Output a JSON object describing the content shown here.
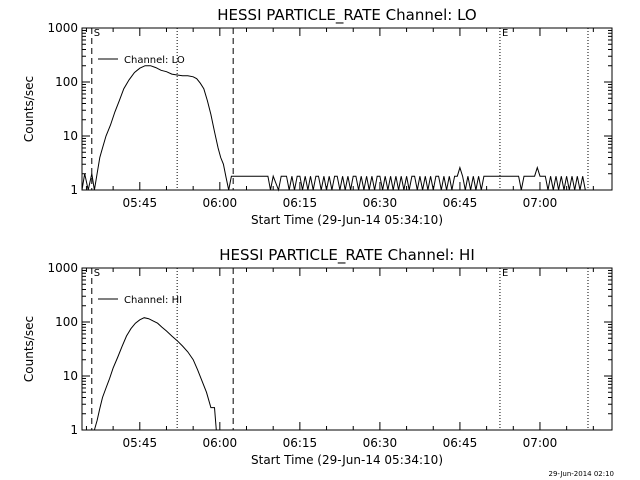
{
  "footer_timestamp": "29-Jun-2014 02:10",
  "chart_data": [
    {
      "type": "line",
      "title": "HESSI PARTICLE_RATE Channel: LO",
      "xlabel": "Start Time (29-Jun-14 05:34:10)",
      "ylabel": "Counts/sec",
      "y_scale": "log",
      "ylim": [
        1,
        1000
      ],
      "xlim": [
        "05:34:10",
        "07:13:30"
      ],
      "x_tick_labels": [
        "05:45",
        "06:00",
        "06:15",
        "06:30",
        "06:45",
        "07:00"
      ],
      "y_tick_labels": [
        "1",
        "10",
        "100",
        "1000"
      ],
      "legend": {
        "label": "Channel: LO",
        "position": "top-left"
      },
      "markers": [
        {
          "time": "05:36:00",
          "style": "dashed",
          "label": "S"
        },
        {
          "time": "05:52:00",
          "style": "dotted",
          "label": ""
        },
        {
          "time": "06:02:30",
          "style": "dashed",
          "label": ""
        },
        {
          "time": "06:52:30",
          "style": "dotted",
          "label": "E"
        },
        {
          "time": "07:09:00",
          "style": "dotted",
          "label": ""
        }
      ],
      "series": [
        {
          "name": "Channel: LO",
          "points": [
            [
              "05:34:10",
              1
            ],
            [
              "05:34:40",
              2
            ],
            [
              "05:35:20",
              1
            ],
            [
              "05:36:00",
              2
            ],
            [
              "05:36:30",
              1
            ],
            [
              "05:37:00",
              2
            ],
            [
              "05:37:30",
              4
            ],
            [
              "05:38:00",
              6
            ],
            [
              "05:38:40",
              10
            ],
            [
              "05:39:30",
              16
            ],
            [
              "05:40:20",
              28
            ],
            [
              "05:41:10",
              45
            ],
            [
              "05:42:00",
              75
            ],
            [
              "05:43:00",
              110
            ],
            [
              "05:44:00",
              150
            ],
            [
              "05:45:00",
              180
            ],
            [
              "05:46:00",
              200
            ],
            [
              "05:47:00",
              200
            ],
            [
              "05:48:00",
              185
            ],
            [
              "05:49:00",
              165
            ],
            [
              "05:50:00",
              155
            ],
            [
              "05:51:00",
              140
            ],
            [
              "05:52:00",
              135
            ],
            [
              "05:53:00",
              130
            ],
            [
              "05:54:00",
              130
            ],
            [
              "05:55:00",
              125
            ],
            [
              "05:55:40",
              115
            ],
            [
              "05:56:20",
              95
            ],
            [
              "05:57:00",
              75
            ],
            [
              "05:57:40",
              45
            ],
            [
              "05:58:20",
              25
            ],
            [
              "05:59:00",
              12
            ],
            [
              "05:59:40",
              6
            ],
            [
              "06:00:10",
              4
            ],
            [
              "06:00:40",
              3
            ],
            [
              "06:01:10",
              1.7
            ],
            [
              "06:01:40",
              1
            ],
            [
              "06:02:10",
              1.8
            ],
            [
              "06:03:00",
              1.8
            ],
            [
              "06:04:00",
              1.8
            ],
            [
              "06:05:00",
              1.8
            ],
            [
              "06:06:00",
              1.8
            ],
            [
              "06:07:00",
              1.8
            ],
            [
              "06:08:00",
              1.8
            ],
            [
              "06:09:00",
              1.8
            ],
            [
              "06:09:30",
              1
            ],
            [
              "06:10:00",
              1.8
            ],
            [
              "06:11:00",
              1
            ],
            [
              "06:11:30",
              1.8
            ],
            [
              "06:12:30",
              1.8
            ],
            [
              "06:13:00",
              1
            ],
            [
              "06:13:30",
              1.8
            ],
            [
              "06:14:00",
              1
            ],
            [
              "06:14:30",
              1.8
            ],
            [
              "06:15:00",
              1.8
            ],
            [
              "06:15:30",
              1
            ],
            [
              "06:16:00",
              1.8
            ],
            [
              "06:16:30",
              1
            ],
            [
              "06:17:00",
              1.8
            ],
            [
              "06:17:30",
              1
            ],
            [
              "06:18:00",
              1.8
            ],
            [
              "06:18:30",
              1.8
            ],
            [
              "06:19:00",
              1
            ],
            [
              "06:19:30",
              1.8
            ],
            [
              "06:20:00",
              1
            ],
            [
              "06:20:30",
              1.8
            ],
            [
              "06:21:00",
              1
            ],
            [
              "06:21:30",
              1.8
            ],
            [
              "06:22:00",
              1.8
            ],
            [
              "06:22:30",
              1
            ],
            [
              "06:23:00",
              1.8
            ],
            [
              "06:23:30",
              1
            ],
            [
              "06:24:00",
              1.8
            ],
            [
              "06:24:30",
              1
            ],
            [
              "06:25:00",
              1.8
            ],
            [
              "06:25:30",
              1.8
            ],
            [
              "06:26:00",
              1
            ],
            [
              "06:26:30",
              1.8
            ],
            [
              "06:27:00",
              1
            ],
            [
              "06:27:30",
              1.8
            ],
            [
              "06:28:00",
              1
            ],
            [
              "06:28:30",
              1.8
            ],
            [
              "06:29:00",
              1
            ],
            [
              "06:29:30",
              1.8
            ],
            [
              "06:30:00",
              1.8
            ],
            [
              "06:30:30",
              1
            ],
            [
              "06:31:00",
              1.8
            ],
            [
              "06:31:30",
              1
            ],
            [
              "06:32:00",
              1.8
            ],
            [
              "06:32:30",
              1
            ],
            [
              "06:33:00",
              1.8
            ],
            [
              "06:33:30",
              1
            ],
            [
              "06:34:00",
              1.8
            ],
            [
              "06:34:30",
              1
            ],
            [
              "06:35:00",
              1.8
            ],
            [
              "06:35:30",
              1
            ],
            [
              "06:36:00",
              1.8
            ],
            [
              "06:36:30",
              1.8
            ],
            [
              "06:37:00",
              1
            ],
            [
              "06:37:30",
              1.8
            ],
            [
              "06:38:00",
              1
            ],
            [
              "06:38:30",
              1.8
            ],
            [
              "06:39:00",
              1
            ],
            [
              "06:39:30",
              1.8
            ],
            [
              "06:40:00",
              1
            ],
            [
              "06:40:30",
              1.8
            ],
            [
              "06:41:00",
              1.8
            ],
            [
              "06:41:30",
              1
            ],
            [
              "06:42:00",
              1.8
            ],
            [
              "06:42:30",
              1
            ],
            [
              "06:43:00",
              1.8
            ],
            [
              "06:43:30",
              1
            ],
            [
              "06:44:00",
              1.8
            ],
            [
              "06:44:30",
              1.8
            ],
            [
              "06:45:00",
              2.6
            ],
            [
              "06:45:30",
              1.8
            ],
            [
              "06:46:00",
              1
            ],
            [
              "06:46:30",
              1.8
            ],
            [
              "06:47:00",
              1
            ],
            [
              "06:47:30",
              1.8
            ],
            [
              "06:48:00",
              1
            ],
            [
              "06:48:30",
              1.8
            ],
            [
              "06:49:00",
              1
            ],
            [
              "06:49:30",
              1.8
            ],
            [
              "06:50:00",
              1.8
            ],
            [
              "06:51:00",
              1.8
            ],
            [
              "06:52:00",
              1.8
            ],
            [
              "06:53:00",
              1.8
            ],
            [
              "06:54:00",
              1.8
            ],
            [
              "06:55:00",
              1.8
            ],
            [
              "06:56:00",
              1.8
            ],
            [
              "06:56:30",
              1
            ],
            [
              "06:57:00",
              1.8
            ],
            [
              "06:58:00",
              1.8
            ],
            [
              "06:59:00",
              1.8
            ],
            [
              "06:59:30",
              2.6
            ],
            [
              "07:00:00",
              1.8
            ],
            [
              "07:01:00",
              1.8
            ],
            [
              "07:01:30",
              1
            ],
            [
              "07:02:00",
              1.8
            ],
            [
              "07:02:30",
              1
            ],
            [
              "07:03:00",
              1.8
            ],
            [
              "07:03:30",
              1
            ],
            [
              "07:04:00",
              1.8
            ],
            [
              "07:04:30",
              1
            ],
            [
              "07:05:00",
              1.8
            ],
            [
              "07:05:30",
              1
            ],
            [
              "07:06:00",
              1.8
            ],
            [
              "07:06:30",
              1
            ],
            [
              "07:07:00",
              1.8
            ],
            [
              "07:07:30",
              1
            ],
            [
              "07:08:00",
              1.8
            ],
            [
              "07:08:30",
              1
            ],
            [
              "07:09:00",
              1
            ]
          ]
        }
      ]
    },
    {
      "type": "line",
      "title": "HESSI PARTICLE_RATE Channel: HI",
      "xlabel": "Start Time (29-Jun-14 05:34:10)",
      "ylabel": "Counts/sec",
      "y_scale": "log",
      "ylim": [
        1,
        1000
      ],
      "xlim": [
        "05:34:10",
        "07:13:30"
      ],
      "x_tick_labels": [
        "05:45",
        "06:00",
        "06:15",
        "06:30",
        "06:45",
        "07:00"
      ],
      "y_tick_labels": [
        "1",
        "10",
        "100",
        "1000"
      ],
      "legend": {
        "label": "Channel: HI",
        "position": "top-left"
      },
      "markers": [
        {
          "time": "05:36:00",
          "style": "dashed",
          "label": "S"
        },
        {
          "time": "05:52:00",
          "style": "dotted",
          "label": ""
        },
        {
          "time": "06:02:30",
          "style": "dashed",
          "label": ""
        },
        {
          "time": "06:52:30",
          "style": "dotted",
          "label": "E"
        },
        {
          "time": "07:09:00",
          "style": "dotted",
          "label": ""
        }
      ],
      "series": [
        {
          "name": "Channel: HI",
          "points": [
            [
              "05:36:30",
              1
            ],
            [
              "05:37:00",
              1.5
            ],
            [
              "05:37:30",
              2.5
            ],
            [
              "05:38:00",
              4
            ],
            [
              "05:38:40",
              6
            ],
            [
              "05:39:20",
              9
            ],
            [
              "05:40:00",
              14
            ],
            [
              "05:40:50",
              22
            ],
            [
              "05:41:40",
              35
            ],
            [
              "05:42:30",
              55
            ],
            [
              "05:43:20",
              75
            ],
            [
              "05:44:10",
              95
            ],
            [
              "05:45:00",
              110
            ],
            [
              "05:45:50",
              120
            ],
            [
              "05:46:40",
              115
            ],
            [
              "05:47:30",
              105
            ],
            [
              "05:48:20",
              95
            ],
            [
              "05:49:10",
              80
            ],
            [
              "05:50:00",
              68
            ],
            [
              "05:51:00",
              55
            ],
            [
              "05:52:00",
              45
            ],
            [
              "05:53:00",
              36
            ],
            [
              "05:54:00",
              28
            ],
            [
              "05:55:00",
              20
            ],
            [
              "05:55:50",
              13
            ],
            [
              "05:56:40",
              8
            ],
            [
              "05:57:30",
              5
            ],
            [
              "05:58:20",
              2.6
            ],
            [
              "05:59:00",
              2.6
            ],
            [
              "05:59:20",
              1
            ]
          ]
        }
      ]
    }
  ]
}
